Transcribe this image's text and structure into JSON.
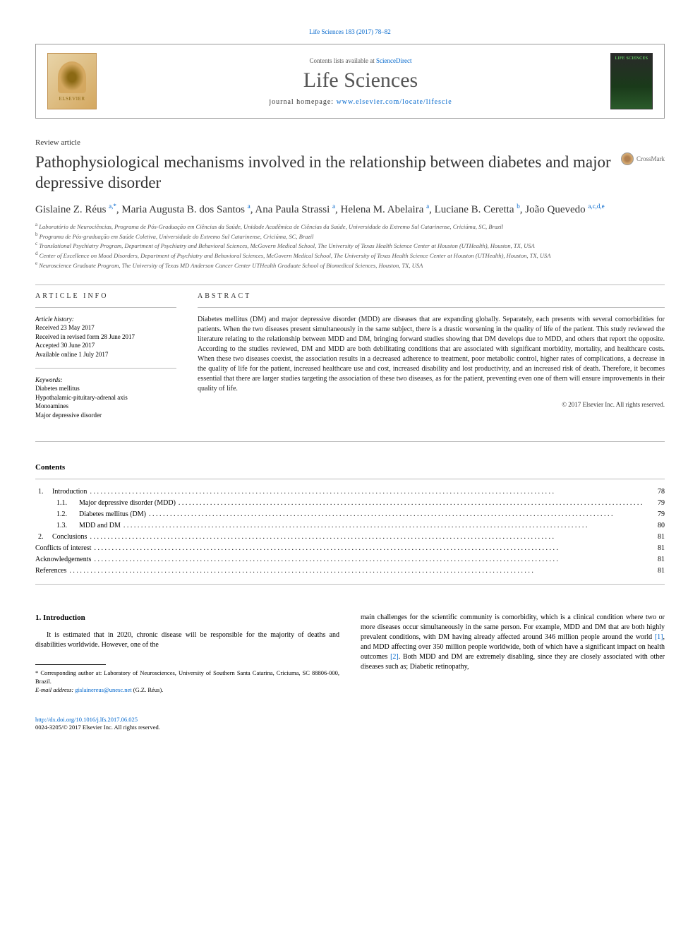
{
  "top_citation": "Life Sciences 183 (2017) 78–82",
  "header": {
    "contents_text": "Contents lists available at ",
    "contents_link": "ScienceDirect",
    "journal": "Life Sciences",
    "homepage_label": "journal homepage: ",
    "homepage_url": "www.elsevier.com/locate/lifescie",
    "elsevier": "ELSEVIER",
    "cover_text": "LIFE SCIENCES"
  },
  "article_type": "Review article",
  "title": "Pathophysiological mechanisms involved in the relationship between diabetes and major depressive disorder",
  "crossmark": "CrossMark",
  "authors_html": "Gislaine Z. Réus <sup>a,*</sup>, Maria Augusta B. dos Santos <sup>a</sup>, Ana Paula Strassi <sup>a</sup>, Helena M. Abelaira <sup>a</sup>, Luciane B. Ceretta <sup>b</sup>, João Quevedo <sup>a,c,d,e</sup>",
  "affiliations": [
    "a Laboratório de Neurociências, Programa de Pós-Graduação em Ciências da Saúde, Unidade Acadêmica de Ciências da Saúde, Universidade do Extremo Sul Catarinense, Criciúma, SC, Brazil",
    "b Programa de Pós-graduação em Saúde Coletiva, Universidade do Extremo Sul Catarinense, Criciúma, SC, Brazil",
    "c Translational Psychiatry Program, Department of Psychiatry and Behavioral Sciences, McGovern Medical School, The University of Texas Health Science Center at Houston (UTHealth), Houston, TX, USA",
    "d Center of Excellence on Mood Disorders, Department of Psychiatry and Behavioral Sciences, McGovern Medical School, The University of Texas Health Science Center at Houston (UTHealth), Houston, TX, USA",
    "e Neuroscience Graduate Program, The University of Texas MD Anderson Cancer Center UTHealth Graduate School of Biomedical Sciences, Houston, TX, USA"
  ],
  "info": {
    "header": "ARTICLE INFO",
    "history_label": "Article history:",
    "history": [
      "Received 23 May 2017",
      "Received in revised form 28 June 2017",
      "Accepted 30 June 2017",
      "Available online 1 July 2017"
    ],
    "keywords_label": "Keywords:",
    "keywords": [
      "Diabetes mellitus",
      "Hypothalamic-pituitary-adrenal axis",
      "Monoamines",
      "Major depressive disorder"
    ]
  },
  "abstract": {
    "header": "ABSTRACT",
    "text": "Diabetes mellitus (DM) and major depressive disorder (MDD) are diseases that are expanding globally. Separately, each presents with several comorbidities for patients. When the two diseases present simultaneously in the same subject, there is a drastic worsening in the quality of life of the patient. This study reviewed the literature relating to the relationship between MDD and DM, bringing forward studies showing that DM develops due to MDD, and others that report the opposite. According to the studies reviewed, DM and MDD are both debilitating conditions that are associated with significant morbidity, mortality, and healthcare costs. When these two diseases coexist, the association results in a decreased adherence to treatment, poor metabolic control, higher rates of complications, a decrease in the quality of life for the patient, increased healthcare use and cost, increased disability and lost productivity, and an increased risk of death. Therefore, it becomes essential that there are larger studies targeting the association of these two diseases, as for the patient, preventing even one of them will ensure improvements in their quality of life.",
    "copyright": "© 2017 Elsevier Inc. All rights reserved."
  },
  "contents": {
    "title": "Contents",
    "items": [
      {
        "num": "1.",
        "label": "Introduction",
        "page": "78",
        "indent": 0
      },
      {
        "num": "1.1.",
        "label": "Major depressive disorder (MDD)",
        "page": "79",
        "indent": 1
      },
      {
        "num": "1.2.",
        "label": "Diabetes mellitus (DM)",
        "page": "79",
        "indent": 1
      },
      {
        "num": "1.3.",
        "label": "MDD and DM",
        "page": "80",
        "indent": 1
      },
      {
        "num": "2.",
        "label": "Conclusions",
        "page": "81",
        "indent": 0
      },
      {
        "num": "",
        "label": "Conflicts of interest",
        "page": "81",
        "indent": -1
      },
      {
        "num": "",
        "label": "Acknowledgements",
        "page": "81",
        "indent": -1
      },
      {
        "num": "",
        "label": "References",
        "page": "81",
        "indent": -1
      }
    ]
  },
  "intro": {
    "heading": "1. Introduction",
    "col1_p1": "It is estimated that in 2020, chronic disease will be responsible for the majority of deaths and disabilities worldwide. However, one of the",
    "col2_p1_pre": "main challenges for the scientific community is comorbidity, which is a clinical condition where two or more diseases occur simultaneously in the same person. For example, MDD and DM that are both highly prevalent conditions, with DM having already affected around 346 million people around the world ",
    "col2_ref1": "[1]",
    "col2_p1_mid": ", and MDD affecting over 350 million people worldwide, both of which have a significant impact on health outcomes ",
    "col2_ref2": "[2]",
    "col2_p1_post": ". Both MDD and DM are extremely disabling, since they are closely associated with other diseases such as; Diabetic retinopathy,"
  },
  "footnote": {
    "corr": "* Corresponding author at: Laboratory of Neurosciences, University of Southern Santa Catarina, Criciuma, SC 88806-000, Brazil.",
    "email_label": "E-mail address: ",
    "email": "gislainereus@unesc.net",
    "email_suffix": " (G.Z. Réus)."
  },
  "footer": {
    "doi": "http://dx.doi.org/10.1016/j.lfs.2017.06.025",
    "issn": "0024-3205/© 2017 Elsevier Inc. All rights reserved."
  },
  "colors": {
    "link": "#0066cc",
    "text": "#222222",
    "border": "#bbbbbb"
  }
}
